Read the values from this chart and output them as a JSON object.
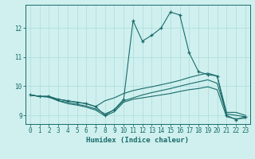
{
  "title": "",
  "xlabel": "Humidex (Indice chaleur)",
  "bg_color": "#cff0ee",
  "grid_color": "#b0ddd8",
  "line_color": "#1a6b6b",
  "xlim": [
    -0.5,
    23.5
  ],
  "ylim": [
    8.7,
    12.8
  ],
  "yticks": [
    9,
    10,
    11,
    12
  ],
  "xticks": [
    0,
    1,
    2,
    3,
    4,
    5,
    6,
    7,
    8,
    9,
    10,
    11,
    12,
    13,
    14,
    15,
    16,
    17,
    18,
    19,
    20,
    21,
    22,
    23
  ],
  "series1_x": [
    0,
    1,
    2,
    3,
    4,
    5,
    6,
    7,
    8,
    9,
    10,
    11,
    12,
    13,
    14,
    15,
    16,
    17,
    18,
    19,
    20,
    21,
    22,
    23
  ],
  "series1_y": [
    9.7,
    9.65,
    9.65,
    9.55,
    9.5,
    9.45,
    9.4,
    9.3,
    9.0,
    9.2,
    9.55,
    12.25,
    11.55,
    11.75,
    12.0,
    12.55,
    12.45,
    11.15,
    10.5,
    10.4,
    10.35,
    9.0,
    8.85,
    8.95
  ],
  "series2_x": [
    0,
    1,
    2,
    3,
    4,
    5,
    6,
    7,
    8,
    9,
    10,
    11,
    12,
    13,
    14,
    15,
    16,
    17,
    18,
    19,
    20,
    21,
    22,
    23
  ],
  "series2_y": [
    9.7,
    9.65,
    9.65,
    9.55,
    9.5,
    9.45,
    9.4,
    9.3,
    9.5,
    9.6,
    9.75,
    9.85,
    9.92,
    9.98,
    10.05,
    10.12,
    10.2,
    10.3,
    10.38,
    10.45,
    10.35,
    9.1,
    9.1,
    9.0
  ],
  "series3_x": [
    0,
    1,
    2,
    3,
    4,
    5,
    6,
    7,
    8,
    9,
    10,
    11,
    12,
    13,
    14,
    15,
    16,
    17,
    18,
    19,
    20,
    21,
    22,
    23
  ],
  "series3_y": [
    9.7,
    9.65,
    9.65,
    9.5,
    9.45,
    9.38,
    9.32,
    9.22,
    9.05,
    9.18,
    9.5,
    9.6,
    9.7,
    9.78,
    9.85,
    9.92,
    10.0,
    10.08,
    10.15,
    10.22,
    10.1,
    9.05,
    9.0,
    8.95
  ],
  "series4_x": [
    0,
    1,
    2,
    3,
    4,
    5,
    6,
    7,
    8,
    9,
    10,
    11,
    12,
    13,
    14,
    15,
    16,
    17,
    18,
    19,
    20,
    21,
    22,
    23
  ],
  "series4_y": [
    9.7,
    9.65,
    9.62,
    9.5,
    9.4,
    9.35,
    9.28,
    9.18,
    8.98,
    9.12,
    9.45,
    9.55,
    9.6,
    9.65,
    9.7,
    9.75,
    9.82,
    9.88,
    9.92,
    9.98,
    9.88,
    8.95,
    8.88,
    8.9
  ]
}
